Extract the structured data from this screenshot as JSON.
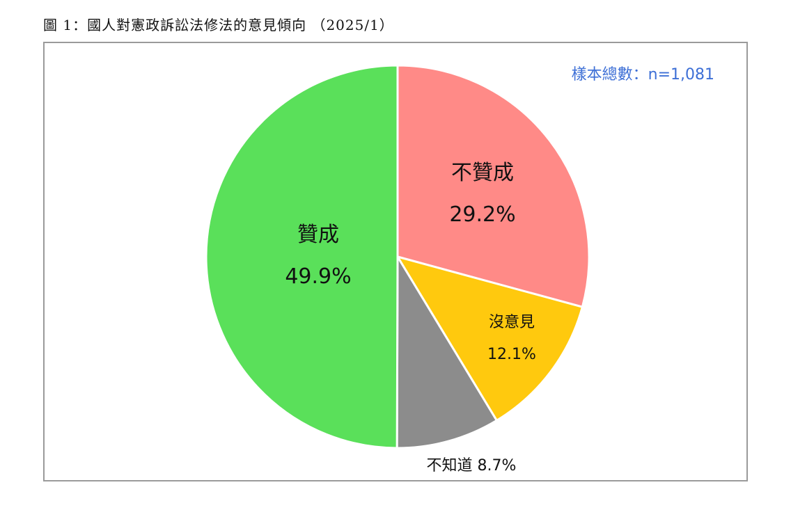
{
  "caption": "圖 1：國人對憲政訴訟法修法的意見傾向 （2025/1）",
  "sample_label": "樣本總數：n=1,081",
  "chart_data": {
    "type": "pie",
    "title": "圖 1：國人對憲政訴訟法修法的意見傾向 （2025/1）",
    "start": "12 o'clock",
    "direction": "clockwise",
    "slices": [
      {
        "label": "不贊成",
        "value": 29.2,
        "value_text": "29.2%",
        "color": "#ff8a87"
      },
      {
        "label": "沒意見",
        "value": 12.1,
        "value_text": "12.1%",
        "color": "#ffc90e"
      },
      {
        "label": "不知道",
        "value": 8.7,
        "value_text": "8.7%",
        "color": "#8c8c8c"
      },
      {
        "label": "贊成",
        "value": 49.9,
        "value_text": "49.9%",
        "color": "#5ae05a"
      }
    ]
  }
}
